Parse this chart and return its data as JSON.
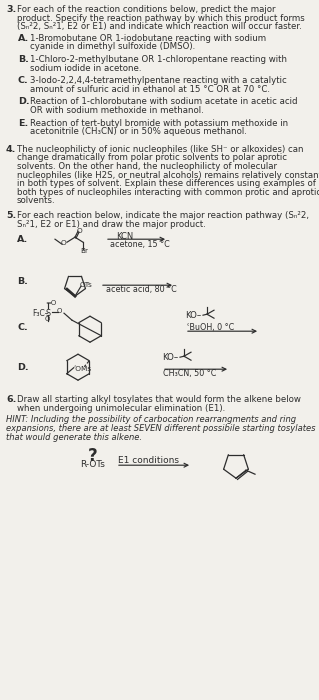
{
  "bg_color": "#f2f0eb",
  "text_color": "#2d2d2d",
  "fig_w": 3.19,
  "fig_h": 7.0,
  "dpi": 100,
  "q3_lines": [
    "For each of the reaction conditions below, predict the major",
    "product. Specify the reaction pathway by which this product forms",
    "(Sₙ²2, Sₙ²1, E2 or E1) and indicate which reaction will occur faster."
  ],
  "q3_subs": [
    [
      "A.",
      "1-Bromobutane OR 1-iodobutane reacting with sodium",
      "cyanide in dimethyl sulfoxide (DMSO)."
    ],
    [
      "B.",
      "1-Chloro-2-methylbutane OR 1-chloropentane reacting with",
      "sodium iodide in acetone."
    ],
    [
      "C.",
      "3-Iodo-2,2,4,4-tetramethylpentane reacting with a catalytic",
      "amount of sulfuric acid in ethanol at 15 °C OR at 70 °C."
    ],
    [
      "D.",
      "Reaction of 1-chlorobutane with sodium acetate in acetic acid",
      "OR with sodium methoxide in methanol."
    ],
    [
      "E.",
      "Reaction of tert-butyl bromide with potassium methoxide in",
      "acetonitrile (CH₃CN) or in 50% aqueous methanol."
    ]
  ],
  "q4_lines": [
    "The nucleophilicty of ionic nucleophiles (like SH⁻ or alkoxides) can",
    "change dramatically from polar protic solvents to polar aprotic",
    "solvents. On the other hand, the nucleophilicty of molecular",
    "nucleophiles (like H2S, or neutral alcohols) remains relatively constant",
    "in both types of solvent. Explain these differences using examples of",
    "both types of nucleophiles interacting with common protic and aprotic",
    "solvents."
  ],
  "q5_lines": [
    "For each reaction below, indicate the major reaction pathway (Sₙ²2,",
    "Sₙ²1, E2 or E1) and draw the major product."
  ],
  "q6_lines": [
    "Draw all starting alkyl tosylates that would form the alkene below",
    "when undergoing unimolecular elimination (E1)."
  ],
  "q6_hint": [
    "HINT: Including the possibility of carbocation rearrangments and ring",
    "expansions, there are at least SEVEN different possibile starting tosylates",
    "that would generate this alkene."
  ]
}
